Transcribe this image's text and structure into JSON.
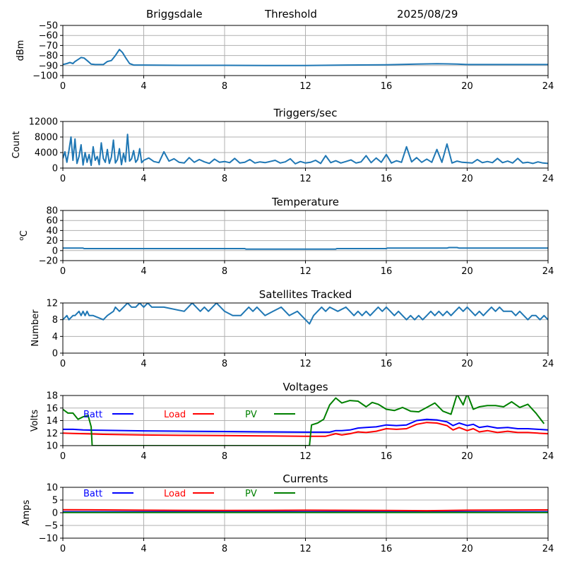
{
  "header": {
    "site": "Briggsdale",
    "mode": "Threshold",
    "date": "2025/08/29"
  },
  "colors": {
    "main": "#1f77b4",
    "batt": "#0000ff",
    "load": "#ff0000",
    "pv": "#008000",
    "grid": "#b0b0b0"
  },
  "chart_data": [
    {
      "type": "line",
      "title": "",
      "ylabel": "dBm",
      "xlim": [
        0,
        24
      ],
      "xticks": [
        "0",
        "4",
        "8",
        "12",
        "16",
        "20",
        "24"
      ],
      "ylim": [
        -100,
        -50
      ],
      "yticks": [
        "−100",
        "−90",
        "−80",
        "−70",
        "−60",
        "−50"
      ],
      "ytick_values": [
        -100,
        -90,
        -80,
        -70,
        -60,
        -50
      ],
      "grid": true,
      "series": [
        {
          "color": "main",
          "x": [
            0,
            0.2,
            0.35,
            0.5,
            0.6,
            0.75,
            0.9,
            1.05,
            1.2,
            1.4,
            1.6,
            1.8,
            2.0,
            2.2,
            2.4,
            2.6,
            2.8,
            2.95,
            3.1,
            3.3,
            3.5,
            4,
            6,
            8,
            10,
            12,
            14,
            16,
            17.5,
            18.5,
            19.5,
            20,
            22,
            24
          ],
          "y": [
            -89,
            -88,
            -87,
            -88,
            -86,
            -84,
            -82,
            -82.5,
            -85,
            -88.5,
            -89,
            -89,
            -89,
            -86,
            -85,
            -80,
            -74,
            -77,
            -82,
            -88,
            -89.5,
            -89.5,
            -89.8,
            -89.8,
            -90,
            -90,
            -89.5,
            -89.2,
            -88.5,
            -88.2,
            -88.5,
            -89,
            -89,
            -89
          ]
        }
      ]
    },
    {
      "type": "line",
      "title": "Triggers/sec",
      "ylabel": "Count",
      "xlim": [
        0,
        24
      ],
      "xticks": [
        "0",
        "4",
        "8",
        "12",
        "16",
        "20",
        "24"
      ],
      "ylim": [
        0,
        12000
      ],
      "yticks": [
        "0",
        "4000",
        "8000",
        "12000"
      ],
      "ytick_values": [
        0,
        4000,
        8000,
        12000
      ],
      "grid": true,
      "series": [
        {
          "color": "main",
          "x": [
            0,
            0.1,
            0.2,
            0.3,
            0.4,
            0.5,
            0.6,
            0.7,
            0.8,
            0.9,
            1.0,
            1.1,
            1.2,
            1.3,
            1.4,
            1.5,
            1.6,
            1.7,
            1.8,
            1.9,
            2.0,
            2.1,
            2.2,
            2.3,
            2.4,
            2.5,
            2.6,
            2.7,
            2.8,
            2.9,
            3.0,
            3.1,
            3.2,
            3.3,
            3.4,
            3.5,
            3.6,
            3.7,
            3.8,
            3.9,
            4.0,
            4.25,
            4.5,
            4.75,
            5.0,
            5.25,
            5.5,
            5.75,
            6.0,
            6.25,
            6.5,
            6.75,
            7.0,
            7.25,
            7.5,
            7.75,
            8.0,
            8.25,
            8.5,
            8.75,
            9.0,
            9.25,
            9.5,
            9.75,
            10.0,
            10.25,
            10.5,
            10.75,
            11.0,
            11.25,
            11.5,
            11.75,
            12.0,
            12.25,
            12.5,
            12.75,
            13.0,
            13.25,
            13.5,
            13.75,
            14.0,
            14.25,
            14.5,
            14.75,
            15.0,
            15.25,
            15.5,
            15.75,
            16.0,
            16.25,
            16.5,
            16.75,
            17.0,
            17.25,
            17.5,
            17.75,
            18.0,
            18.25,
            18.5,
            18.75,
            19.0,
            19.25,
            19.5,
            19.75,
            20.0,
            20.25,
            20.5,
            20.75,
            21.0,
            21.25,
            21.5,
            21.75,
            22.0,
            22.25,
            22.5,
            22.75,
            23.0,
            23.25,
            23.5,
            23.75,
            24.0
          ],
          "y": [
            2500,
            4200,
            1500,
            4500,
            8000,
            2000,
            7500,
            1200,
            3000,
            6000,
            800,
            4000,
            1500,
            3500,
            700,
            5500,
            2000,
            3000,
            900,
            6500,
            2500,
            1500,
            4800,
            1200,
            2800,
            7200,
            1300,
            2200,
            5000,
            900,
            3800,
            1600,
            8700,
            1800,
            2400,
            4500,
            1500,
            2200,
            5000,
            1400,
            2000,
            2600,
            1700,
            1400,
            4200,
            1800,
            2400,
            1500,
            1300,
            2700,
            1500,
            2200,
            1600,
            1200,
            2300,
            1500,
            1700,
            1400,
            2500,
            1300,
            1500,
            2200,
            1300,
            1600,
            1400,
            1700,
            2000,
            1300,
            1600,
            2400,
            1100,
            1700,
            1300,
            1500,
            2000,
            1200,
            3200,
            1400,
            1900,
            1300,
            1700,
            2100,
            1300,
            1600,
            3200,
            1400,
            2600,
            1500,
            3500,
            1300,
            1900,
            1500,
            5500,
            1600,
            2700,
            1500,
            2300,
            1500,
            4800,
            1500,
            6200,
            1300,
            1800,
            1500,
            1400,
            1300,
            2200,
            1400,
            1700,
            1400,
            2500,
            1400,
            1800,
            1300,
            2500,
            1300,
            1500,
            1200,
            1600,
            1300,
            1200
          ]
        }
      ]
    },
    {
      "type": "line",
      "title": "Temperature",
      "ylabel": "°C",
      "ylabel_prefix": "o",
      "xlim": [
        0,
        24
      ],
      "xticks": [
        "0",
        "4",
        "8",
        "12",
        "16",
        "20",
        "24"
      ],
      "ylim": [
        -20,
        80
      ],
      "yticks": [
        "−20",
        "0",
        "20",
        "40",
        "60",
        "80"
      ],
      "ytick_values": [
        -20,
        0,
        20,
        40,
        60,
        80
      ],
      "grid": true,
      "series": [
        {
          "color": "main",
          "x": [
            0,
            1,
            1.05,
            4,
            8,
            9,
            9.05,
            12,
            13.5,
            13.55,
            16,
            16.05,
            19,
            19.1,
            19.5,
            19.6,
            24
          ],
          "y": [
            5,
            5,
            4,
            4,
            4,
            4,
            3,
            3,
            3,
            4,
            4,
            5,
            5,
            6,
            6,
            5,
            5
          ]
        }
      ]
    },
    {
      "type": "line",
      "title": "Satellites Tracked",
      "ylabel": "Number",
      "xlim": [
        0,
        24
      ],
      "xticks": [
        "0",
        "4",
        "8",
        "12",
        "16",
        "20",
        "24"
      ],
      "ylim": [
        0,
        12
      ],
      "yticks": [
        "0",
        "4",
        "8",
        "12"
      ],
      "ytick_values": [
        0,
        4,
        8,
        12
      ],
      "grid": true,
      "series": [
        {
          "color": "main",
          "x": [
            0,
            0.2,
            0.3,
            0.5,
            0.6,
            0.8,
            0.9,
            1.0,
            1.1,
            1.2,
            1.3,
            1.5,
            2.0,
            2.2,
            2.5,
            2.6,
            2.8,
            3.0,
            3.2,
            3.4,
            3.6,
            3.8,
            4.0,
            4.2,
            4.4,
            4.6,
            5.0,
            6.0,
            6.2,
            6.4,
            6.6,
            6.8,
            7.0,
            7.2,
            7.4,
            7.6,
            7.8,
            8.0,
            8.4,
            8.8,
            9.0,
            9.2,
            9.4,
            9.6,
            9.8,
            10.0,
            10.4,
            10.8,
            11.2,
            11.6,
            11.8,
            12.0,
            12.2,
            12.4,
            12.6,
            12.8,
            13.0,
            13.2,
            13.6,
            14.0,
            14.2,
            14.4,
            14.6,
            14.8,
            15.0,
            15.2,
            15.4,
            15.6,
            15.8,
            16.0,
            16.2,
            16.4,
            16.6,
            16.8,
            17.0,
            17.2,
            17.4,
            17.6,
            17.8,
            18.0,
            18.2,
            18.4,
            18.6,
            18.8,
            19.0,
            19.2,
            19.4,
            19.6,
            19.8,
            20.0,
            20.2,
            20.4,
            20.6,
            20.8,
            21.0,
            21.2,
            21.4,
            21.6,
            21.8,
            22.0,
            22.2,
            22.4,
            22.6,
            22.8,
            23.0,
            23.2,
            23.4,
            23.6,
            23.8,
            24.0
          ],
          "y": [
            8,
            9,
            8,
            9,
            9,
            10,
            9,
            10,
            9,
            10,
            9,
            9,
            8,
            9,
            10,
            11,
            10,
            11,
            12,
            11,
            11,
            12,
            11,
            12,
            11,
            11,
            11,
            10,
            11,
            12,
            11,
            10,
            11,
            10,
            11,
            12,
            11,
            10,
            9,
            9,
            10,
            11,
            10,
            11,
            10,
            9,
            10,
            11,
            9,
            10,
            9,
            8,
            7,
            9,
            10,
            11,
            10,
            11,
            10,
            11,
            10,
            9,
            10,
            9,
            10,
            9,
            10,
            11,
            10,
            11,
            10,
            9,
            10,
            9,
            8,
            9,
            8,
            9,
            8,
            9,
            10,
            9,
            10,
            9,
            10,
            9,
            10,
            11,
            10,
            11,
            10,
            9,
            10,
            9,
            10,
            11,
            10,
            11,
            10,
            10,
            10,
            9,
            10,
            9,
            8,
            9,
            9,
            8,
            9,
            8
          ]
        }
      ]
    },
    {
      "type": "line",
      "title": "Voltages",
      "ylabel": "Volts",
      "xlim": [
        0,
        24
      ],
      "xticks": [
        "0",
        "4",
        "8",
        "12",
        "16",
        "20",
        "24"
      ],
      "ylim": [
        10,
        18
      ],
      "yticks": [
        "10",
        "12",
        "14",
        "16",
        "18"
      ],
      "ytick_values": [
        10,
        12,
        14,
        16,
        18
      ],
      "grid": true,
      "legend": [
        "Batt",
        "Load",
        "PV"
      ],
      "series": [
        {
          "name": "Batt",
          "color": "batt",
          "x": [
            0,
            0.5,
            1,
            2,
            4,
            6,
            8,
            10,
            12,
            13.2,
            13.5,
            13.8,
            14.2,
            14.6,
            15,
            15.5,
            16,
            16.5,
            17,
            17.5,
            18,
            18.5,
            19,
            19.3,
            19.6,
            20,
            20.3,
            20.6,
            21,
            21.5,
            22,
            22.5,
            23,
            23.5,
            24
          ],
          "y": [
            12.6,
            12.6,
            12.5,
            12.45,
            12.35,
            12.3,
            12.25,
            12.2,
            12.15,
            12.15,
            12.4,
            12.4,
            12.5,
            12.8,
            12.9,
            13.0,
            13.3,
            13.2,
            13.3,
            14.0,
            14.2,
            14.1,
            13.8,
            13.2,
            13.6,
            13.2,
            13.4,
            12.9,
            13.1,
            12.8,
            12.9,
            12.7,
            12.7,
            12.6,
            12.5
          ]
        },
        {
          "name": "Load",
          "color": "load",
          "x": [
            0,
            0.5,
            1,
            2,
            4,
            6,
            8,
            10,
            12,
            13,
            13.5,
            13.8,
            14.2,
            14.6,
            15,
            15.5,
            16,
            16.5,
            17,
            17.5,
            18,
            18.5,
            19,
            19.3,
            19.6,
            20,
            20.3,
            20.6,
            21,
            21.5,
            22,
            22.5,
            23,
            23.5,
            24
          ],
          "y": [
            12.0,
            11.95,
            11.9,
            11.8,
            11.7,
            11.65,
            11.6,
            11.55,
            11.5,
            11.5,
            11.9,
            11.7,
            11.9,
            12.2,
            12.1,
            12.3,
            12.7,
            12.6,
            12.7,
            13.4,
            13.7,
            13.6,
            13.2,
            12.5,
            12.9,
            12.4,
            12.7,
            12.2,
            12.4,
            12.1,
            12.3,
            12.1,
            12.1,
            12.0,
            11.9
          ]
        },
        {
          "name": "PV",
          "color": "pv",
          "x": [
            0,
            0.25,
            0.5,
            0.75,
            1,
            1.25,
            1.4,
            1.45,
            12.2,
            12.3,
            12.6,
            12.9,
            13.2,
            13.5,
            13.8,
            14.2,
            14.6,
            15,
            15.3,
            15.6,
            16,
            16.4,
            16.8,
            17.2,
            17.6,
            18,
            18.4,
            18.8,
            19.2,
            19.5,
            19.8,
            20,
            20.3,
            20.6,
            21,
            21.4,
            21.8,
            22.2,
            22.6,
            23,
            23.4,
            23.8
          ],
          "y": [
            15.8,
            15.2,
            15.2,
            14.2,
            14.6,
            14.8,
            13.0,
            10.0,
            10.0,
            13.3,
            13.6,
            14.2,
            16.5,
            17.6,
            16.8,
            17.2,
            17.1,
            16.2,
            16.9,
            16.6,
            15.8,
            15.6,
            16.1,
            15.5,
            15.4,
            16.1,
            16.8,
            15.5,
            15.0,
            18.2,
            16.5,
            18.3,
            15.8,
            16.2,
            16.4,
            16.4,
            16.2,
            17.0,
            16.1,
            16.6,
            15.2,
            13.5
          ]
        }
      ]
    },
    {
      "type": "line",
      "title": "Currents",
      "ylabel": "Amps",
      "xlim": [
        0,
        24
      ],
      "xticks": [
        "0",
        "4",
        "8",
        "12",
        "16",
        "20",
        "24"
      ],
      "ylim": [
        -10,
        10
      ],
      "yticks": [
        "−10",
        "−5",
        "0",
        "5",
        "10"
      ],
      "ytick_values": [
        -10,
        -5,
        0,
        5,
        10
      ],
      "grid": true,
      "legend": [
        "Batt",
        "Load",
        "PV"
      ],
      "series": [
        {
          "name": "Batt",
          "color": "batt",
          "x": [
            0,
            24
          ],
          "y": [
            0.4,
            0.4
          ]
        },
        {
          "name": "Load",
          "color": "load",
          "x": [
            0,
            2,
            4,
            8,
            12,
            16,
            18,
            20,
            24
          ],
          "y": [
            1.2,
            1.1,
            1.0,
            0.9,
            1.0,
            0.9,
            0.8,
            1.0,
            1.1
          ]
        },
        {
          "name": "PV",
          "color": "pv",
          "x": [
            0,
            24
          ],
          "y": [
            0.1,
            0.1
          ]
        }
      ]
    }
  ]
}
